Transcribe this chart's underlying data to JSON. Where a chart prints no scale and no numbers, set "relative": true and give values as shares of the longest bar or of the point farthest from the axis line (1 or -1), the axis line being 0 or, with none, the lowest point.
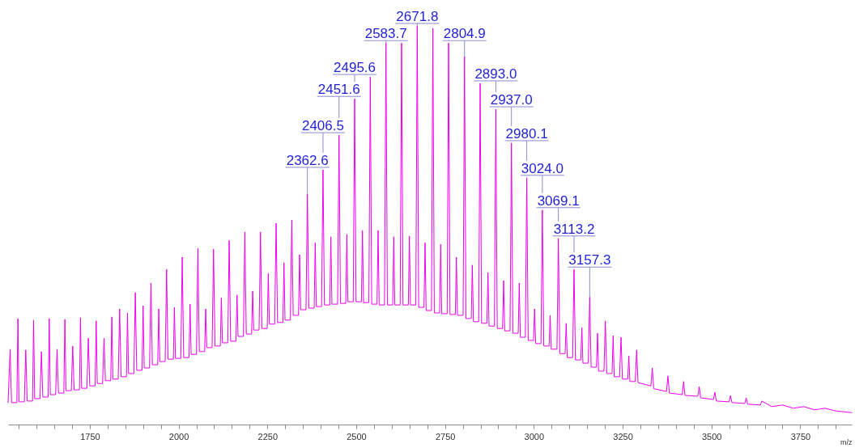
{
  "chart_data": {
    "type": "line",
    "relative": true,
    "xlabel": "m/z",
    "color": "#ee00ee",
    "xlim": [
      1520,
      3895
    ],
    "xticks": [
      {
        "value": 1550,
        "label": null
      },
      {
        "value": 1600,
        "label": null
      },
      {
        "value": 1650,
        "label": null
      },
      {
        "value": 1700,
        "label": null
      },
      1750,
      {
        "value": 1800,
        "label": null
      },
      {
        "value": 1850,
        "label": null
      },
      {
        "value": 1900,
        "label": null
      },
      {
        "value": 1950,
        "label": null
      },
      2000,
      {
        "value": 2050,
        "label": null
      },
      {
        "value": 2100,
        "label": null
      },
      {
        "value": 2150,
        "label": null
      },
      {
        "value": 2200,
        "label": null
      },
      2250,
      {
        "value": 2300,
        "label": null
      },
      {
        "value": 2350,
        "label": null
      },
      {
        "value": 2400,
        "label": null
      },
      {
        "value": 2450,
        "label": null
      },
      2500,
      {
        "value": 2550,
        "label": null
      },
      {
        "value": 2600,
        "label": null
      },
      {
        "value": 2650,
        "label": null
      },
      {
        "value": 2700,
        "label": null
      },
      2750,
      {
        "value": 2800,
        "label": null
      },
      {
        "value": 2850,
        "label": null
      },
      {
        "value": 2900,
        "label": null
      },
      {
        "value": 2950,
        "label": null
      },
      3000,
      {
        "value": 3050,
        "label": null
      },
      {
        "value": 3100,
        "label": null
      },
      {
        "value": 3150,
        "label": null
      },
      {
        "value": 3200,
        "label": null
      },
      3250,
      {
        "value": 3300,
        "label": null
      },
      {
        "value": 3350,
        "label": null
      },
      {
        "value": 3400,
        "label": null
      },
      {
        "value": 3450,
        "label": null
      },
      3500,
      {
        "value": 3550,
        "label": null
      },
      {
        "value": 3600,
        "label": null
      },
      {
        "value": 3650,
        "label": null
      },
      {
        "value": 3700,
        "label": null
      },
      3750,
      {
        "value": 3800,
        "label": null
      },
      {
        "value": 3850,
        "label": null
      }
    ],
    "x": [
      1520,
      1525.7,
      1529.7,
      1544.7,
      1547.7,
      1550.7,
      1565.7,
      1569.7,
      1573.8,
      1588.8,
      1591.8,
      1594.8,
      1609.8,
      1613.8,
      1617.8,
      1632.8,
      1635.8,
      1638.8,
      1653.8,
      1657.8,
      1661.9,
      1676.9,
      1679.9,
      1682.9,
      1697.9,
      1701.9,
      1705.9,
      1720.9,
      1723.9,
      1726.9,
      1741.9,
      1745.9,
      1750.0,
      1765.0,
      1768.0,
      1771.0,
      1786.0,
      1790.0,
      1794.0,
      1809.0,
      1812.0,
      1815.0,
      1830.0,
      1834.0,
      1838.1,
      1853.1,
      1856.1,
      1859.1,
      1874.1,
      1878.1,
      1882.1,
      1897.1,
      1900.1,
      1903.1,
      1918.1,
      1922.1,
      1926.2,
      1941.2,
      1944.2,
      1947.2,
      1962.2,
      1966.2,
      1970.2,
      1985.2,
      1988.2,
      1991.2,
      2006.2,
      2010.2,
      2014.3,
      2029.3,
      2032.3,
      2035.3,
      2050.3,
      2054.3,
      2058.3,
      2073.3,
      2076.3,
      2079.3,
      2094.3,
      2098.3,
      2102.4,
      2117.4,
      2120.4,
      2123.4,
      2138.4,
      2142.4,
      2146.4,
      2161.4,
      2164.4,
      2167.4,
      2182.4,
      2186.4,
      2190.5,
      2205.5,
      2208.5,
      2211.5,
      2226.5,
      2230.5,
      2234.5,
      2249.5,
      2252.5,
      2255.5,
      2270.5,
      2274.5,
      2278.6,
      2293.6,
      2296.6,
      2299.6,
      2314.6,
      2318.6,
      2322.6,
      2337.6,
      2340.6,
      2343.6,
      2358.6,
      2362.6,
      2366.6,
      2381.6,
      2384.6,
      2387.6,
      2402.5,
      2406.5,
      2410.5,
      2425.6,
      2428.6,
      2431.6,
      2447.6,
      2451.6,
      2455.6,
      2470.6,
      2473.6,
      2476.6,
      2491.6,
      2495.6,
      2499.6,
      2514.6,
      2517.6,
      2520.6,
      2535.6,
      2539.6,
      2543.6,
      2558.6,
      2561.6,
      2564.6,
      2579.7,
      2583.7,
      2587.7,
      2602.7,
      2605.7,
      2608.7,
      2623.7,
      2627.7,
      2631.7,
      2646.7,
      2649.7,
      2652.7,
      2667.8,
      2671.8,
      2675.8,
      2690.8,
      2693.8,
      2696.8,
      2711.8,
      2715.8,
      2719.8,
      2734.8,
      2737.8,
      2740.8,
      2756.0,
      2760.0,
      2764.0,
      2779.0,
      2782.0,
      2785.0,
      2800.9,
      2804.9,
      2808.9,
      2823.9,
      2826.9,
      2829.9,
      2844.9,
      2848.9,
      2852.9,
      2867.9,
      2870.9,
      2873.9,
      2889.0,
      2893.0,
      2897.0,
      2912.0,
      2915.0,
      2918.0,
      2933.0,
      2937.0,
      2941.0,
      2956.0,
      2959.0,
      2962.0,
      2976.1,
      2980.1,
      2984.1,
      2999.1,
      3002.1,
      3005.1,
      3020.0,
      3024.0,
      3028.0,
      3043.0,
      3046.0,
      3049.0,
      3065.1,
      3069.1,
      3073.1,
      3088.1,
      3091.1,
      3094.1,
      3109.2,
      3113.2,
      3117.2,
      3132.2,
      3135.2,
      3138.2,
      3153.3,
      3157.3,
      3161.3,
      3176.3,
      3179.3,
      3182.3,
      3197.3,
      3201.3,
      3205.3,
      3220.3,
      3223.3,
      3226.3,
      3241.4,
      3245.4,
      3249.4,
      3264.4,
      3267.4,
      3270.4,
      3285.4,
      3289.4,
      3293.4,
      3329.5,
      3333.5,
      3337.5,
      3373.5,
      3377.5,
      3381.5,
      3417.6,
      3421.6,
      3425.6,
      3461.6,
      3465.6,
      3469.6,
      3505.7,
      3509.7,
      3513.7,
      3549.7,
      3553.7,
      3557.7,
      3593.8,
      3597.8,
      3601.8,
      3637.8,
      3641.8,
      3670,
      3700,
      3730,
      3760,
      3790,
      3820,
      3850,
      3895
    ],
    "values": [
      0.055,
      0.189,
      0.055,
      0.055,
      0.266,
      0.057,
      0.057,
      0.187,
      0.059,
      0.059,
      0.262,
      0.065,
      0.065,
      0.183,
      0.069,
      0.069,
      0.266,
      0.075,
      0.075,
      0.189,
      0.079,
      0.079,
      0.264,
      0.085,
      0.085,
      0.197,
      0.087,
      0.087,
      0.268,
      0.091,
      0.091,
      0.217,
      0.097,
      0.097,
      0.26,
      0.103,
      0.103,
      0.217,
      0.11,
      0.11,
      0.27,
      0.114,
      0.114,
      0.29,
      0.12,
      0.12,
      0.28,
      0.128,
      0.128,
      0.331,
      0.136,
      0.136,
      0.298,
      0.142,
      0.142,
      0.355,
      0.15,
      0.15,
      0.29,
      0.158,
      0.158,
      0.389,
      0.164,
      0.164,
      0.294,
      0.166,
      0.166,
      0.42,
      0.168,
      0.168,
      0.302,
      0.176,
      0.176,
      0.442,
      0.183,
      0.183,
      0.29,
      0.193,
      0.193,
      0.44,
      0.197,
      0.197,
      0.318,
      0.205,
      0.205,
      0.462,
      0.209,
      0.209,
      0.325,
      0.221,
      0.221,
      0.483,
      0.227,
      0.227,
      0.335,
      0.237,
      0.237,
      0.483,
      0.241,
      0.241,
      0.379,
      0.252,
      0.252,
      0.505,
      0.256,
      0.256,
      0.406,
      0.262,
      0.262,
      0.513,
      0.274,
      0.274,
      0.426,
      0.288,
      0.288,
      0.578,
      0.292,
      0.292,
      0.456,
      0.296,
      0.296,
      0.639,
      0.3,
      0.3,
      0.471,
      0.302,
      0.302,
      0.726,
      0.304,
      0.304,
      0.477,
      0.308,
      0.308,
      0.817,
      0.308,
      0.308,
      0.487,
      0.306,
      0.306,
      0.872,
      0.302,
      0.302,
      0.487,
      0.3,
      0.3,
      0.957,
      0.3,
      0.3,
      0.471,
      0.3,
      0.3,
      0.957,
      0.3,
      0.3,
      0.473,
      0.3,
      0.3,
      1.0,
      0.294,
      0.294,
      0.456,
      0.286,
      0.286,
      0.994,
      0.28,
      0.28,
      0.452,
      0.278,
      0.278,
      0.957,
      0.276,
      0.276,
      0.42,
      0.274,
      0.274,
      0.923,
      0.266,
      0.266,
      0.4,
      0.258,
      0.258,
      0.856,
      0.254,
      0.254,
      0.381,
      0.247,
      0.247,
      0.791,
      0.241,
      0.241,
      0.361,
      0.235,
      0.235,
      0.706,
      0.229,
      0.229,
      0.355,
      0.219,
      0.219,
      0.619,
      0.211,
      0.211,
      0.29,
      0.203,
      0.203,
      0.538,
      0.197,
      0.197,
      0.274,
      0.189,
      0.189,
      0.467,
      0.178,
      0.178,
      0.254,
      0.168,
      0.168,
      0.389,
      0.162,
      0.162,
      0.243,
      0.154,
      0.154,
      0.32,
      0.144,
      0.144,
      0.229,
      0.134,
      0.134,
      0.26,
      0.128,
      0.128,
      0.223,
      0.12,
      0.12,
      0.219,
      0.114,
      0.114,
      0.172,
      0.108,
      0.108,
      0.187,
      0.105,
      0.097,
      0.142,
      0.09,
      0.083,
      0.122,
      0.079,
      0.075,
      0.108,
      0.073,
      0.071,
      0.095,
      0.067,
      0.063,
      0.081,
      0.059,
      0.057,
      0.073,
      0.055,
      0.053,
      0.067,
      0.051,
      0.049,
      0.059,
      0.045,
      0.049,
      0.041,
      0.045,
      0.037,
      0.041,
      0.034,
      0.03
    ],
    "annotations": [
      {
        "text": "2362.6",
        "x": 2362.6,
        "y": 0.578
      },
      {
        "text": "2406.5",
        "x": 2406.5,
        "y": 0.639
      },
      {
        "text": "2451.6",
        "x": 2451.6,
        "y": 0.726
      },
      {
        "text": "2495.6",
        "x": 2495.6,
        "y": 0.817
      },
      {
        "text": "2583.7",
        "x": 2583.7,
        "y": 0.957
      },
      {
        "text": "2671.8",
        "x": 2671.8,
        "y": 1.0
      },
      {
        "text": "2804.9",
        "x": 2804.9,
        "y": 0.923
      },
      {
        "text": "2893.0",
        "x": 2893.0,
        "y": 0.791
      },
      {
        "text": "2937.0",
        "x": 2937.0,
        "y": 0.706
      },
      {
        "text": "2980.1",
        "x": 2980.1,
        "y": 0.619
      },
      {
        "text": "3024.0",
        "x": 3024.0,
        "y": 0.538
      },
      {
        "text": "3069.1",
        "x": 3069.1,
        "y": 0.467
      },
      {
        "text": "3113.2",
        "x": 3113.2,
        "y": 0.389
      },
      {
        "text": "3157.3",
        "x": 3157.3,
        "y": 0.32
      }
    ]
  }
}
